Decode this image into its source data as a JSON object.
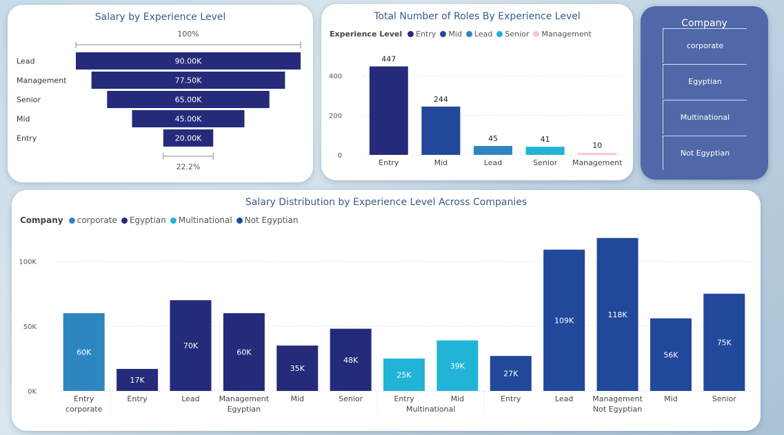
{
  "funnel": {
    "title": "Salary by Experience Level",
    "top_pct": "100%",
    "bottom_pct": "22.2%",
    "color": "#252b7a",
    "items": [
      {
        "label": "Lead",
        "value": 90000,
        "value_label": "90.00K"
      },
      {
        "label": "Management",
        "value": 77500,
        "value_label": "77.50K"
      },
      {
        "label": "Senior",
        "value": 65000,
        "value_label": "65.00K"
      },
      {
        "label": "Mid",
        "value": 45000,
        "value_label": "45.00K"
      },
      {
        "label": "Entry",
        "value": 20000,
        "value_label": "20.00K"
      }
    ]
  },
  "roles": {
    "title": "Total Number of Roles By Experience Level",
    "legend_title": "Experience Level",
    "legend": [
      {
        "name": "Entry",
        "color": "#252b7a"
      },
      {
        "name": "Mid",
        "color": "#21489a"
      },
      {
        "name": "Lead",
        "color": "#2e86c1"
      },
      {
        "name": "Senior",
        "color": "#22b4d6"
      },
      {
        "name": "Management",
        "color": "#f6c4d2"
      }
    ]
  },
  "slicer": {
    "title": "Company",
    "items": [
      "corporate",
      "Egyptian",
      "Multinational",
      "Not Egyptian"
    ]
  },
  "dist": {
    "title": "Salary Distribution by Experience Level Across Companies",
    "legend_title": "Company",
    "legend": [
      {
        "name": "corporate",
        "color": "#2e86c1"
      },
      {
        "name": "Egyptian",
        "color": "#252b7a"
      },
      {
        "name": "Multinational",
        "color": "#22b4d6"
      },
      {
        "name": "Not Egyptian",
        "color": "#21489a"
      }
    ]
  },
  "chart_data": [
    {
      "type": "bar",
      "title": "Salary by Experience Level",
      "categories": [
        "Lead",
        "Management",
        "Senior",
        "Mid",
        "Entry"
      ],
      "values": [
        90000,
        77500,
        65000,
        45000,
        20000
      ],
      "data_labels": [
        "90.00K",
        "77.50K",
        "65.00K",
        "45.00K",
        "20.00K"
      ]
    },
    {
      "type": "bar",
      "title": "Total Number of Roles By Experience Level",
      "categories": [
        "Entry",
        "Mid",
        "Lead",
        "Senior",
        "Management"
      ],
      "values": [
        447,
        244,
        45,
        41,
        10
      ],
      "ylim": [
        0,
        480
      ],
      "yticks": [
        0,
        200,
        400
      ],
      "grid": true,
      "legend": "top-left"
    },
    {
      "type": "bar",
      "title": "Salary Distribution by Experience Level Across Companies",
      "ylim": [
        0,
        120000
      ],
      "yticks": [
        0,
        50000,
        100000
      ],
      "ytick_labels": [
        "0K",
        "50K",
        "100K"
      ],
      "grid": true,
      "legend": "top-left",
      "groups": [
        {
          "name": "corporate",
          "bars": [
            {
              "category": "Entry",
              "value": 60000,
              "label": "60K"
            }
          ]
        },
        {
          "name": "Egyptian",
          "bars": [
            {
              "category": "Entry",
              "value": 17000,
              "label": "17K"
            },
            {
              "category": "Lead",
              "value": 70000,
              "label": "70K"
            },
            {
              "category": "Management",
              "value": 60000,
              "label": "60K"
            },
            {
              "category": "Mid",
              "value": 35000,
              "label": "35K"
            },
            {
              "category": "Senior",
              "value": 48000,
              "label": "48K"
            }
          ]
        },
        {
          "name": "Multinational",
          "bars": [
            {
              "category": "Entry",
              "value": 25000,
              "label": "25K"
            },
            {
              "category": "Mid",
              "value": 39000,
              "label": "39K"
            }
          ]
        },
        {
          "name": "Not Egyptian",
          "bars": [
            {
              "category": "Entry",
              "value": 27000,
              "label": "27K"
            },
            {
              "category": "Lead",
              "value": 109000,
              "label": "109K"
            },
            {
              "category": "Management",
              "value": 118000,
              "label": "118K"
            },
            {
              "category": "Mid",
              "value": 56000,
              "label": "56K"
            },
            {
              "category": "Senior",
              "value": 75000,
              "label": "75K"
            }
          ]
        }
      ]
    }
  ]
}
